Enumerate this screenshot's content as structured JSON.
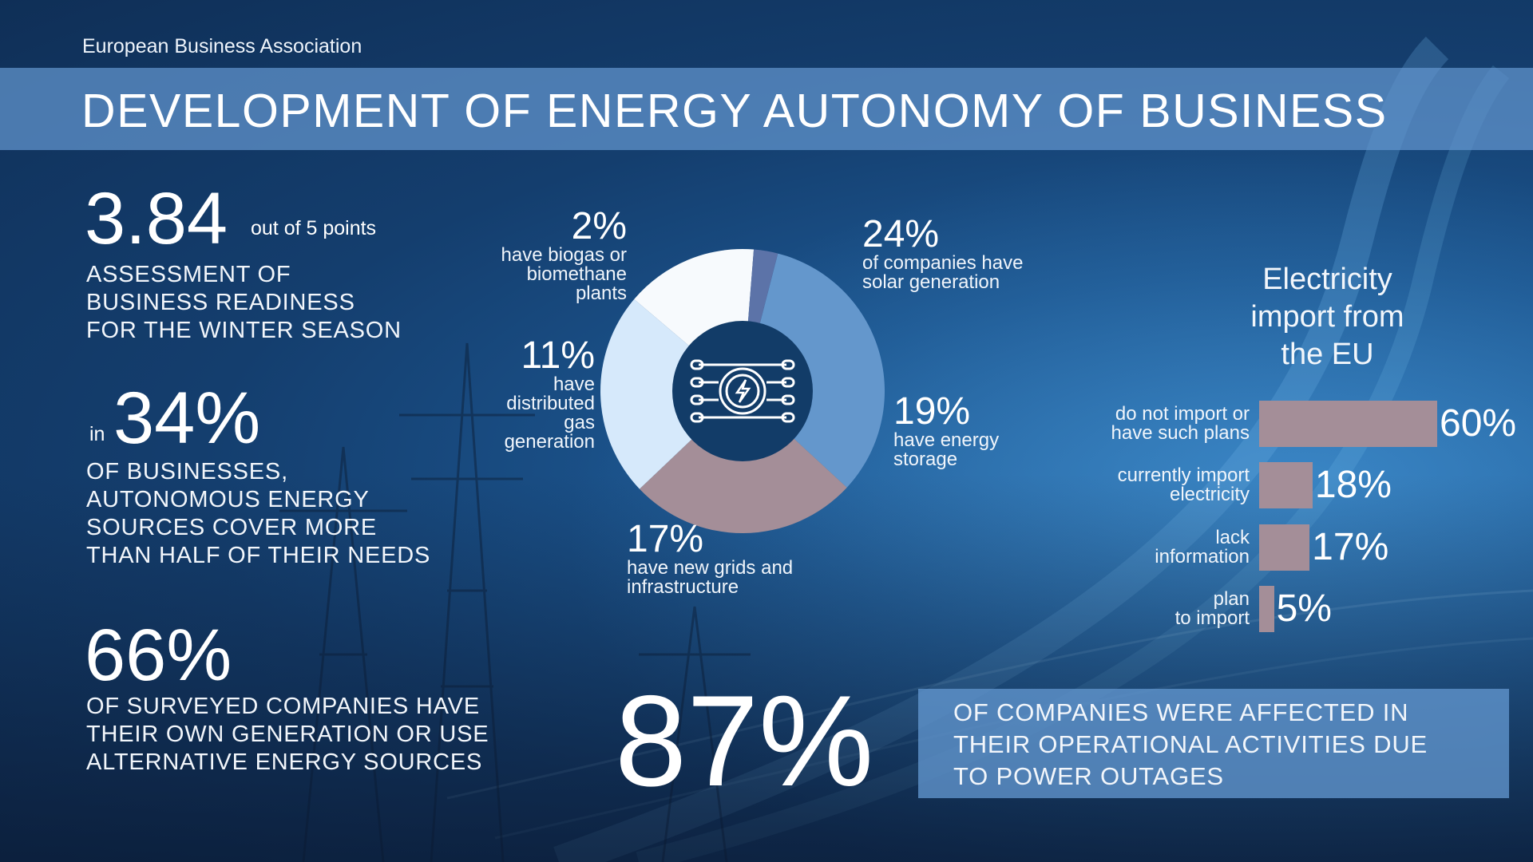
{
  "organization": "European Business Association",
  "title": "DEVELOPMENT OF ENERGY AUTONOMY OF BUSINESS",
  "readiness": {
    "value": "3.84",
    "unit": "out of 5 points",
    "caption": [
      "ASSESSMENT OF",
      "BUSINESS READINESS",
      "FOR THE WINTER SEASON"
    ]
  },
  "autonomous": {
    "prefix": "in",
    "value": "34%",
    "caption": [
      "OF BUSINESSES,",
      "AUTONOMOUS ENERGY",
      "SOURCES COVER MORE",
      "THAN HALF OF THEIR NEEDS"
    ]
  },
  "own_generation": {
    "value": "66%",
    "caption": [
      "OF SURVEYED COMPANIES HAVE",
      "THEIR OWN GENERATION OR USE",
      "ALTERNATIVE ENERGY SOURCES"
    ]
  },
  "outages": {
    "value": "87%",
    "caption": [
      "OF COMPANIES WERE AFFECTED IN",
      "THEIR OPERATIONAL ACTIVITIES DUE",
      "TO POWER OUTAGES"
    ]
  },
  "center_icon": "energy-grid-icon",
  "chart_data": [
    {
      "type": "pie",
      "slices": [
        {
          "pct_label": "24%",
          "value": 24,
          "label_lines": [
            "of companies have",
            "solar generation"
          ],
          "color": "#6497cc"
        },
        {
          "pct_label": "19%",
          "value": 19,
          "label_lines": [
            "have energy",
            "storage"
          ],
          "color": "#a48e98"
        },
        {
          "pct_label": "17%",
          "value": 17,
          "label_lines": [
            "have new grids and",
            "infrastructure"
          ],
          "color": "#d6e9fb"
        },
        {
          "pct_label": "11%",
          "value": 11,
          "label_lines": [
            "have",
            "distributed",
            "gas",
            "generation"
          ],
          "color": "#f7fafd"
        },
        {
          "pct_label": "2%",
          "value": 2,
          "label_lines": [
            "have biogas or",
            "biomethane",
            "plants"
          ],
          "color": "#5c73a8"
        }
      ]
    },
    {
      "type": "bar",
      "title": [
        "Electricity",
        "import from",
        "the EU"
      ],
      "bars": [
        {
          "label_lines": [
            "do not import or",
            "have such plans"
          ],
          "value": 60,
          "value_label": "60%"
        },
        {
          "label_lines": [
            "currently import",
            "electricity"
          ],
          "value": 18,
          "value_label": "18%"
        },
        {
          "label_lines": [
            "lack",
            "information"
          ],
          "value": 17,
          "value_label": "17%"
        },
        {
          "label_lines": [
            "plan",
            "to import"
          ],
          "value": 5,
          "value_label": "5%"
        }
      ],
      "bar_color": "#a48e98"
    }
  ]
}
